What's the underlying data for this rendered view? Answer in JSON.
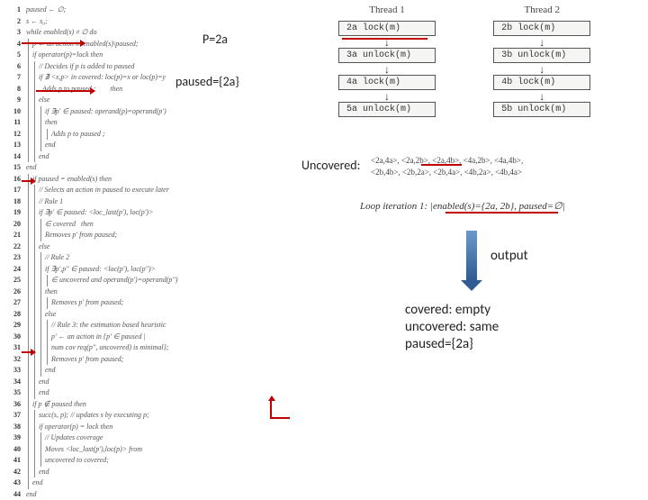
{
  "algorithm": {
    "lines": [
      {
        "num": "1",
        "indent": 0,
        "code": "paused ← ∅;"
      },
      {
        "num": "2",
        "indent": 0,
        "code": "s ← s₀;"
      },
      {
        "num": "3",
        "indent": 0,
        "code": "while enabled(s) ≠ ∅ do"
      },
      {
        "num": "4",
        "indent": 1,
        "code": "p ← an action in enabled(s)\\paused;"
      },
      {
        "num": "5",
        "indent": 1,
        "code": "if operator(p)=lock then"
      },
      {
        "num": "6",
        "indent": 2,
        "code": "// Decides if p is added to paused"
      },
      {
        "num": "7",
        "indent": 2,
        "code": "if ∄ <x,p> in covered: loc(p)=x or loc(p)=y"
      },
      {
        "num": "8",
        "indent": 2,
        "code": "  Adds p to paused ;        then"
      },
      {
        "num": "9",
        "indent": 2,
        "code": "else"
      },
      {
        "num": "10",
        "indent": 3,
        "code": "if ∃p' ∈ paused: operand(p)=operand(p')"
      },
      {
        "num": "11",
        "indent": 3,
        "code": "then"
      },
      {
        "num": "12",
        "indent": 4,
        "code": "Adds p to paused ;"
      },
      {
        "num": "13",
        "indent": 3,
        "code": "end"
      },
      {
        "num": "14",
        "indent": 2,
        "code": "end"
      },
      {
        "num": "15",
        "indent": 0,
        "code": "end"
      },
      {
        "num": "16",
        "indent": 1,
        "code": "if paused = enabled(s) then"
      },
      {
        "num": "17",
        "indent": 2,
        "code": "// Selects an action in paused to execute later"
      },
      {
        "num": "18",
        "indent": 2,
        "code": "// Rule 1"
      },
      {
        "num": "19",
        "indent": 2,
        "code": "if ∃p' ∈ paused: <loc_last(p'), loc(p')>"
      },
      {
        "num": "20",
        "indent": 3,
        "code": "∈ covered   then"
      },
      {
        "num": "21",
        "indent": 3,
        "code": "Removes p' from paused;"
      },
      {
        "num": "22",
        "indent": 2,
        "code": "else"
      },
      {
        "num": "23",
        "indent": 3,
        "code": "// Rule 2"
      },
      {
        "num": "24",
        "indent": 3,
        "code": "if ∃p',p'' ∈ paused: <loc(p'), loc(p'')>"
      },
      {
        "num": "25",
        "indent": 4,
        "code": "∈ uncovered and operand(p')=operand(p'')"
      },
      {
        "num": "26",
        "indent": 3,
        "code": "then"
      },
      {
        "num": "27",
        "indent": 4,
        "code": "Removes p' from paused;"
      },
      {
        "num": "28",
        "indent": 3,
        "code": "else"
      },
      {
        "num": "29",
        "indent": 4,
        "code": "// Rule 3: the estimation based heuristic"
      },
      {
        "num": "30",
        "indent": 4,
        "code": "p' ← an action in {p' ∈ paused |"
      },
      {
        "num": "31",
        "indent": 4,
        "code": "num cov req(p'', uncovered) is minimal};"
      },
      {
        "num": "32",
        "indent": 4,
        "code": "Removes p' from paused;"
      },
      {
        "num": "33",
        "indent": 3,
        "code": "end"
      },
      {
        "num": "34",
        "indent": 2,
        "code": "end"
      },
      {
        "num": "35",
        "indent": 2,
        "code": "end"
      },
      {
        "num": "36",
        "indent": 1,
        "code": "if p ∉ paused then"
      },
      {
        "num": "37",
        "indent": 2,
        "code": "succ(s, p); // updates s by executing p;"
      },
      {
        "num": "38",
        "indent": 2,
        "code": "if operator(p) = lock then"
      },
      {
        "num": "39",
        "indent": 3,
        "code": "// Updates coverage"
      },
      {
        "num": "40",
        "indent": 3,
        "code": "Moves <loc_last(p'),loc(p)> from"
      },
      {
        "num": "41",
        "indent": 3,
        "code": "uncovered to covered;"
      },
      {
        "num": "42",
        "indent": 2,
        "code": "end"
      },
      {
        "num": "43",
        "indent": 1,
        "code": "end"
      },
      {
        "num": "44",
        "indent": 0,
        "code": "end"
      }
    ]
  },
  "threads": {
    "thread1": {
      "title": "Thread 1",
      "ops": [
        "2a lock(m)",
        "3a unlock(m)",
        "4a lock(m)",
        "5a unlock(m)"
      ]
    },
    "thread2": {
      "title": "Thread 2",
      "ops": [
        "2b lock(m)",
        "3b unlock(m)",
        "4b lock(m)",
        "5b unlock(m)"
      ]
    }
  },
  "annotations": {
    "p_eq": "P=2a",
    "paused_eq": "paused={2a}",
    "uncovered_label": "Uncovered:",
    "pairs_line1": "<2a,4a>, <2a,2b>, <2a,4b>, <4a,2b>, <4a,4b>,",
    "pairs_line2": "<2b,4b>, <2b,2a>, <2b,4a>, <4b,2a>, <4b,4a>",
    "loop_iter": "Loop iteration 1: |enabled(s)={2a, 2b}, paused=∅|",
    "output": "output",
    "result_covered": "covered: empty",
    "result_uncovered": "uncovered: same",
    "result_paused": "paused={2a}"
  },
  "colors": {
    "red": "#c00000",
    "blue_top": "#6a9ac9",
    "blue_bottom": "#2f5c93",
    "text": "#222222",
    "code_text": "#555555",
    "box_bg": "#f5f5f3",
    "box_border": "#555555"
  }
}
